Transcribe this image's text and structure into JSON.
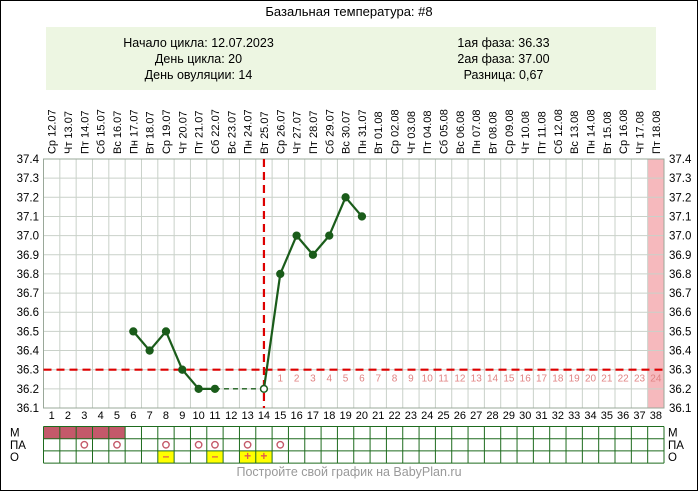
{
  "title": "Базальная температура: #8",
  "info": {
    "left": [
      "Начало цикла: 12.07.2023",
      "День цикла: 20",
      "День овуляции: 14"
    ],
    "right": [
      "1ая фаза: 36.33",
      "2ая фаза: 37.00",
      "Разница: 0,67"
    ]
  },
  "footer": "Постройте свой график на BabyPlan.ru",
  "colors": {
    "accent_line": "#1a5c1a",
    "reference_red": "#dd0000",
    "grid": "#c9d1c9",
    "plot_border": "#9aa89a",
    "pink_band": "#f6b9bd",
    "menses": "#c4596a",
    "yellow_test": "#ffff00",
    "dpo_text": "#e08383",
    "test_symbol": "#e25a4d",
    "table_border": "#1e6b1e",
    "info_bg": "#edf6e2",
    "footer_text": "#999999",
    "axis_text": "#000000"
  },
  "chart_data": {
    "type": "line",
    "title": "Базальная температура: #8",
    "ylim": [
      36.1,
      37.4
    ],
    "ytick_step": 0.1,
    "grid": true,
    "dates": [
      "Ср 12.07",
      "Чт 13.07",
      "Пт 14.07",
      "Сб 15.07",
      "Вс 16.07",
      "Пн 17.07",
      "Вт 18.07",
      "Ср 19.07",
      "Чт 20.07",
      "Пт 21.07",
      "Сб 22.07",
      "Вс 23.07",
      "Пн 24.07",
      "Вт 25.07",
      "Ср 26.07",
      "Чт 27.07",
      "Пт 28.07",
      "Сб 29.07",
      "Вс 30.07",
      "Пн 31.07",
      "Вт 01.08",
      "Ср 02.08",
      "Чт 03.08",
      "Пт 04.08",
      "Сб 05.08",
      "Вс 06.08",
      "Пн 07.08",
      "Вт 08.08",
      "Ср 09.08",
      "Чт 10.08",
      "Пт 11.08",
      "Сб 12.08",
      "Вс 13.08",
      "Пн 14.08",
      "Вт 15.08",
      "Ср 16.08",
      "Чт 17.08",
      "Пт 18.08"
    ],
    "points": [
      {
        "day": 6,
        "temp": 36.5
      },
      {
        "day": 7,
        "temp": 36.4
      },
      {
        "day": 8,
        "temp": 36.5
      },
      {
        "day": 9,
        "temp": 36.3
      },
      {
        "day": 10,
        "temp": 36.2
      },
      {
        "day": 11,
        "temp": 36.2
      },
      {
        "day": 14,
        "temp": 36.2
      },
      {
        "day": 15,
        "temp": 36.8
      },
      {
        "day": 16,
        "temp": 37.0
      },
      {
        "day": 17,
        "temp": 36.9
      },
      {
        "day": 18,
        "temp": 37.0
      },
      {
        "day": 19,
        "temp": 37.2
      },
      {
        "day": 20,
        "temp": 37.1
      }
    ],
    "ovulation_day": 14,
    "coverline": 36.3,
    "dpo_count": 24,
    "highlight_column_day": 38,
    "event_rows": {
      "labels": [
        "М",
        "ПА",
        "О"
      ],
      "menstruation_days": [
        1,
        2,
        3,
        4,
        5
      ],
      "intercourse_days": [
        3,
        5,
        8,
        10,
        11,
        13,
        15
      ],
      "ovulation_tests": [
        {
          "day": 8,
          "result": "–"
        },
        {
          "day": 11,
          "result": "–"
        },
        {
          "day": 13,
          "result": "+"
        },
        {
          "day": 14,
          "result": "+"
        }
      ]
    }
  }
}
